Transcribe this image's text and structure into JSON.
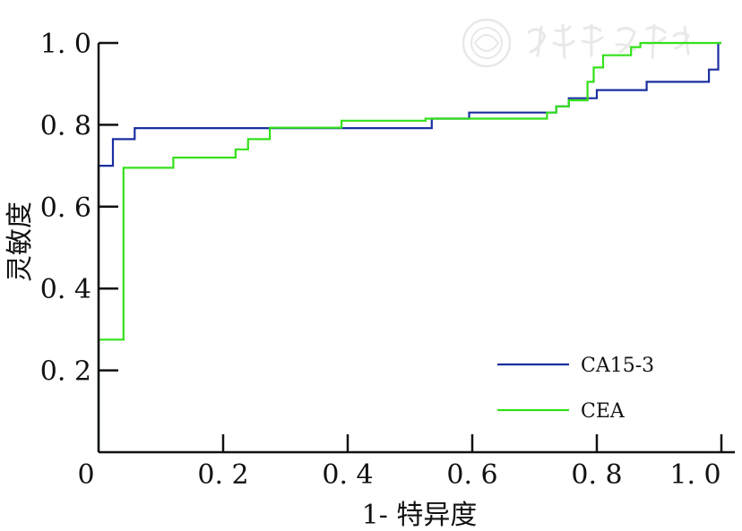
{
  "chart_data": {
    "type": "line",
    "title": "",
    "xlabel": "1- 特异度",
    "ylabel": "灵敏度",
    "xlim": [
      0,
      1.0
    ],
    "ylim": [
      0,
      1.0
    ],
    "x_ticks": [
      0,
      0.2,
      0.4,
      0.6,
      0.8,
      1.0
    ],
    "x_tick_labels": [
      "0",
      "0. 2",
      "0. 4",
      "0. 6",
      "0. 8",
      "1. 0"
    ],
    "y_ticks": [
      0.2,
      0.4,
      0.6,
      0.8,
      1.0
    ],
    "y_tick_labels": [
      "0. 2",
      "0. 4",
      "0. 6",
      "0. 8",
      "1. 0"
    ],
    "grid": false,
    "legend_position": "bottom-right",
    "colors": {
      "CA15-3": "#1a2fa0",
      "CEA": "#33e01a"
    },
    "series": [
      {
        "name": "CA15-3",
        "step": true,
        "points": [
          [
            0.0,
            0.0
          ],
          [
            0.0,
            0.28
          ],
          [
            0.0,
            0.7
          ],
          [
            0.023,
            0.7
          ],
          [
            0.023,
            0.765
          ],
          [
            0.058,
            0.765
          ],
          [
            0.058,
            0.792
          ],
          [
            0.535,
            0.792
          ],
          [
            0.535,
            0.815
          ],
          [
            0.595,
            0.815
          ],
          [
            0.595,
            0.83
          ],
          [
            0.735,
            0.83
          ],
          [
            0.735,
            0.845
          ],
          [
            0.755,
            0.845
          ],
          [
            0.755,
            0.865
          ],
          [
            0.8,
            0.865
          ],
          [
            0.8,
            0.885
          ],
          [
            0.88,
            0.885
          ],
          [
            0.88,
            0.905
          ],
          [
            0.98,
            0.905
          ],
          [
            0.98,
            0.935
          ],
          [
            0.995,
            0.935
          ],
          [
            0.995,
            1.0
          ],
          [
            1.0,
            1.0
          ]
        ]
      },
      {
        "name": "CEA",
        "step": true,
        "points": [
          [
            0.0,
            0.0
          ],
          [
            0.0,
            0.275
          ],
          [
            0.04,
            0.275
          ],
          [
            0.04,
            0.695
          ],
          [
            0.12,
            0.695
          ],
          [
            0.12,
            0.72
          ],
          [
            0.22,
            0.72
          ],
          [
            0.22,
            0.74
          ],
          [
            0.24,
            0.74
          ],
          [
            0.24,
            0.765
          ],
          [
            0.275,
            0.765
          ],
          [
            0.275,
            0.793
          ],
          [
            0.39,
            0.793
          ],
          [
            0.39,
            0.81
          ],
          [
            0.525,
            0.81
          ],
          [
            0.525,
            0.815
          ],
          [
            0.72,
            0.815
          ],
          [
            0.72,
            0.83
          ],
          [
            0.735,
            0.83
          ],
          [
            0.735,
            0.845
          ],
          [
            0.755,
            0.845
          ],
          [
            0.755,
            0.86
          ],
          [
            0.785,
            0.86
          ],
          [
            0.785,
            0.905
          ],
          [
            0.795,
            0.905
          ],
          [
            0.795,
            0.94
          ],
          [
            0.81,
            0.94
          ],
          [
            0.81,
            0.97
          ],
          [
            0.855,
            0.97
          ],
          [
            0.855,
            0.99
          ],
          [
            0.87,
            0.99
          ],
          [
            0.87,
            1.0
          ],
          [
            1.0,
            1.0
          ]
        ]
      }
    ]
  }
}
